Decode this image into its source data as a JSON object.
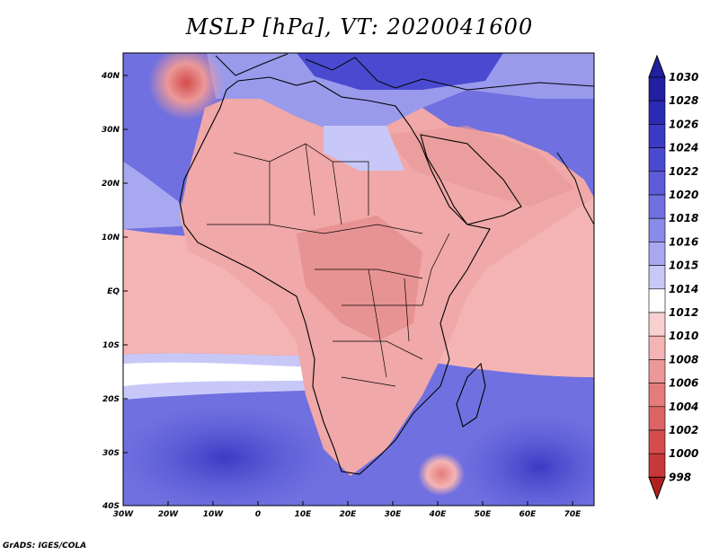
{
  "title": "MSLP [hPa], VT: 2020041600",
  "credit": "GrADS: IGES/COLA",
  "map": {
    "lon_labels": [
      "30W",
      "20W",
      "10W",
      "0",
      "10E",
      "20E",
      "30E",
      "40E",
      "50E",
      "60E",
      "70E"
    ],
    "lat_labels": [
      "40N",
      "30N",
      "20N",
      "10N",
      "EQ",
      "10S",
      "20S",
      "30S",
      "40S"
    ],
    "lon_range": [
      -30,
      75
    ],
    "lat_range": [
      -40,
      44
    ]
  },
  "colorbar": {
    "levels": [
      "1030",
      "1028",
      "1026",
      "1024",
      "1022",
      "1020",
      "1018",
      "1016",
      "1015",
      "1014",
      "1012",
      "1010",
      "1008",
      "1006",
      "1004",
      "1002",
      "1000",
      "998"
    ],
    "colors": [
      "#2020a0",
      "#2a2ab4",
      "#3a3ac4",
      "#4a4ad0",
      "#5c5cd8",
      "#7070e0",
      "#8a8ae8",
      "#a8a8f0",
      "#c8c8f8",
      "#ffffff",
      "#f8d0d0",
      "#f4b4b4",
      "#ec9898",
      "#e47c7c",
      "#dc6464",
      "#d44c4c",
      "#c83838",
      "#b02020"
    ]
  },
  "colors": {
    "ocean_high": "#5a5ad6",
    "ocean_mid": "#9a9aec",
    "land_low": "#f0a8a8",
    "coast": "#000000"
  }
}
